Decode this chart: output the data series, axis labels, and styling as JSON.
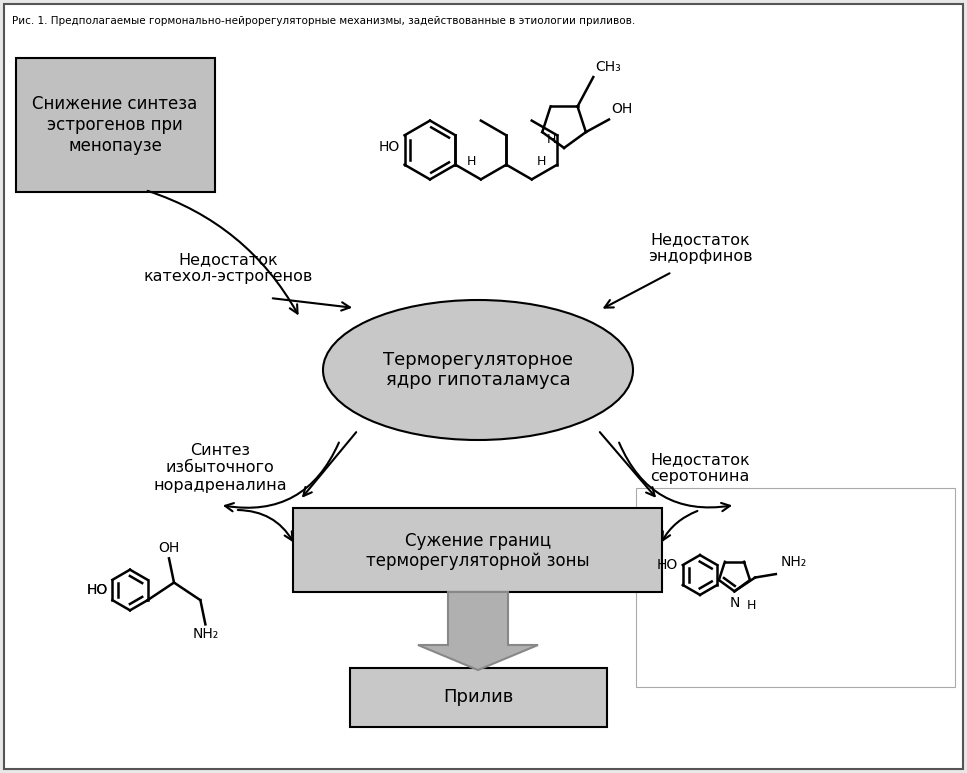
{
  "title": "Рис. 1. Предполагаемые гормонально-нейрорегуляторные механизмы, задействованные в этиологии приливов.",
  "bg_color": "#e8e8e8",
  "inner_bg": "#ffffff",
  "box_gray": "#c0c0c0",
  "text_color": "#000000",
  "ellipse_color": "#c0c0c0",
  "label_catechol": "Недостаток\nкатехол-эстрогенов",
  "label_endorphin": "Недостаток\nэндорфинов",
  "label_norad": "Синтез\nизбыточного\nнорадреналина",
  "label_serotonin": "Недостаток\nсеротонина",
  "label_hypothalamus": "Терморегуляторное\nядро гипоталамуса",
  "label_thermozone": "Сужение границ\nтерморегуляторной зоны",
  "label_flush": "Прилив",
  "label_estrogen_reduction": "Снижение синтеза\nэстрогенов при\nменопаузе"
}
